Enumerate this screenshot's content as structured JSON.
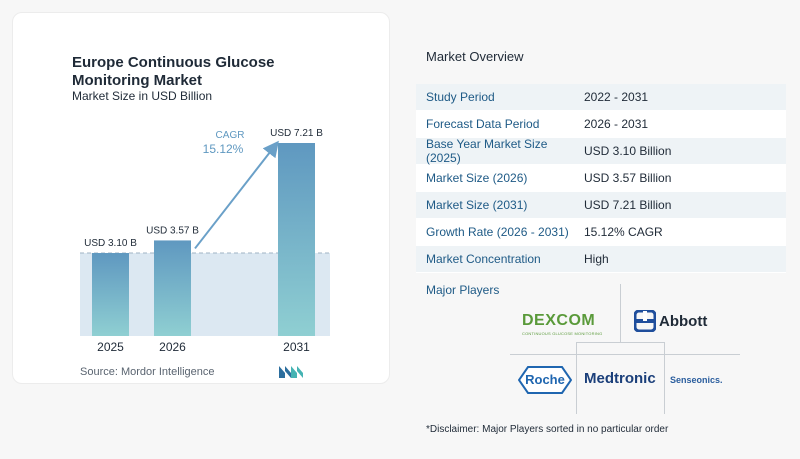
{
  "chart_data": {
    "type": "bar",
    "title": "Europe Continuous Glucose Monitoring Market",
    "subtitle": "Market Size in USD Billion",
    "categories": [
      "2025",
      "2026",
      "2031"
    ],
    "values": [
      3.1,
      3.57,
      7.21
    ],
    "value_labels": [
      "USD 3.10 B",
      "USD 3.57 B",
      "USD 7.21 B"
    ],
    "ylim": [
      0,
      7.21
    ],
    "cagr_label": "CAGR",
    "cagr_value": "15.12%",
    "grid": false,
    "legend": "none",
    "colors": {
      "bar_top": "#5f98c0",
      "bar_bottom": "#8fcfd2",
      "area": "#dce8f2",
      "arrow": "#6aa0c8",
      "cagr": "#5f98c0"
    }
  },
  "source": "Source:  Mordor Intelligence",
  "overview": {
    "title": "Market Overview",
    "rows": [
      {
        "label": "Study Period",
        "value": "2022 - 2031"
      },
      {
        "label": "Forecast Data Period",
        "value": "2026 - 2031"
      },
      {
        "label": "Base Year Market Size (2025)",
        "value": "USD 3.10 Billion"
      },
      {
        "label": "Market Size (2026)",
        "value": "USD 3.57 Billion"
      },
      {
        "label": "Market Size (2031)",
        "value": "USD 7.21 Billion"
      },
      {
        "label": "Growth Rate (2026 - 2031)",
        "value": "15.12% CAGR"
      },
      {
        "label": "Market Concentration",
        "value": "High"
      }
    ]
  },
  "players": {
    "title": "Major Players",
    "logos": {
      "dexcom": "DEXCOM",
      "dexcom_tag": "CONTINUOUS GLUCOSE MONITORING",
      "abbott": "Abbott",
      "roche": "Roche",
      "medtronic": "Medtronic",
      "senseonics": "Senseonics."
    }
  },
  "disclaimer": "*Disclaimer: Major Players sorted in no particular order"
}
